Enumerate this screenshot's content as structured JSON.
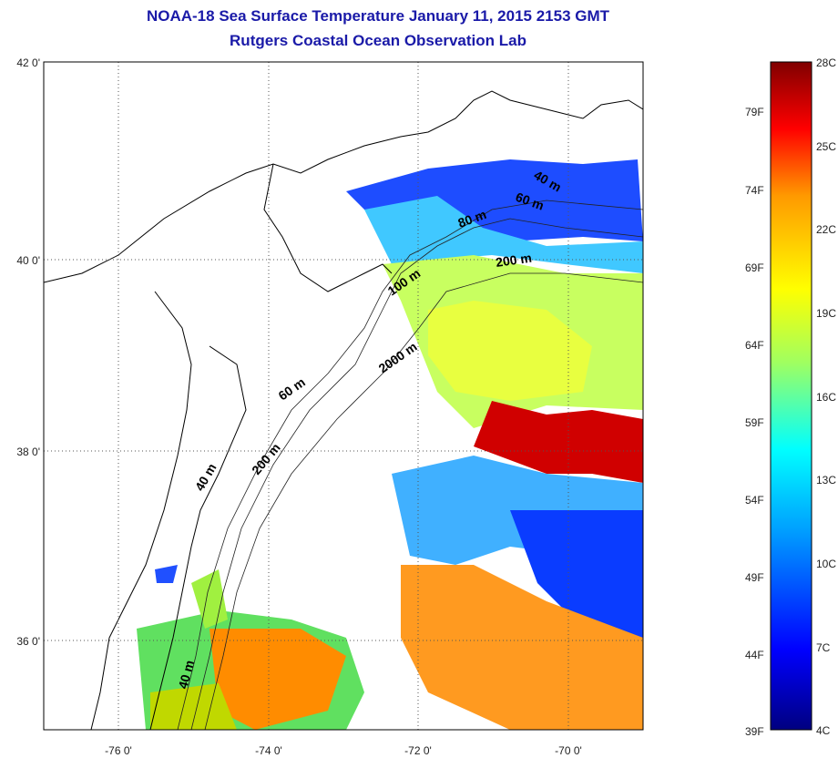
{
  "title": "NOAA-18 Sea Surface Temperature January 11, 2015 2153 GMT",
  "subtitle": "Rutgers Coastal Ocean Observation Lab",
  "map": {
    "lat_ticks": [
      "42 0'",
      "40 0'",
      "38 0'",
      "36 0'"
    ],
    "lon_ticks": [
      "-76 0'",
      "-74 0'",
      "-72 0'",
      "-70 0'"
    ],
    "isobath_labels": [
      "40 m",
      "60 m",
      "80 m",
      "200 m",
      "100 m",
      "2000 m",
      "60 m",
      "40 m",
      "200 m",
      "40 m"
    ]
  },
  "colorbar": {
    "celsius": [
      "28C",
      "25C",
      "22C",
      "19C",
      "16C",
      "13C",
      "10C",
      "7C",
      "4C"
    ],
    "fahrenheit": [
      "79F",
      "74F",
      "69F",
      "64F",
      "59F",
      "54F",
      "49F",
      "44F",
      "39F"
    ],
    "range_celsius": [
      4,
      28
    ],
    "colors": [
      "#000080",
      "#0000ff",
      "#00a0ff",
      "#00ffff",
      "#a0ff60",
      "#ffff00",
      "#ff9900",
      "#ff0000",
      "#800000"
    ]
  }
}
